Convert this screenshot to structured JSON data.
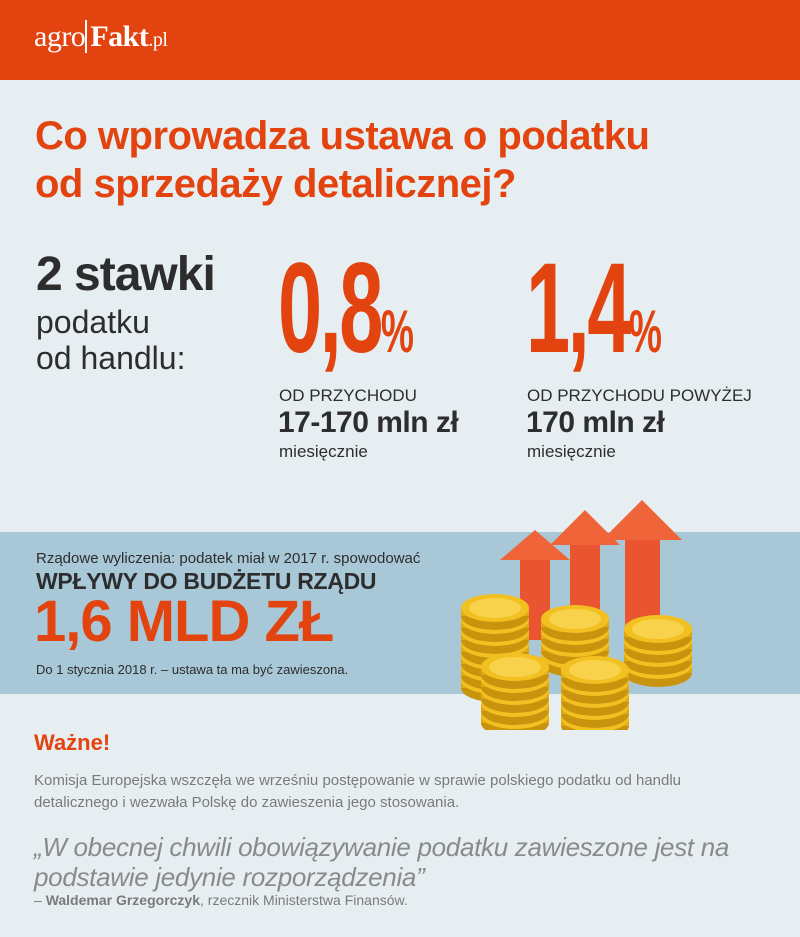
{
  "header": {
    "logo_agro": "agro",
    "logo_fakt": "Fakt",
    "logo_pl": ".pl"
  },
  "title": {
    "line1": "Co wprowadza ustawa o podatku",
    "line2": "od sprzedaży detalicznej?"
  },
  "rates_intro": {
    "heading": "2 stawki",
    "line1": "podatku",
    "line2": "od handlu:"
  },
  "rates": [
    {
      "value": "0,8",
      "percent": "%",
      "label": "OD PRZYCHODU",
      "amount": "17-170 mln zł",
      "period": "miesięcznie"
    },
    {
      "value": "1,4",
      "percent": "%",
      "label": "OD PRZYCHODU POWYŻEJ",
      "amount": "170 mln zł",
      "period": "miesięcznie"
    }
  ],
  "budget": {
    "intro": "Rządowe wyliczenia: podatek miał w 2017 r. spowodować",
    "heading": "WPŁYWY DO BUDŻETU RZĄDU",
    "amount": "1,6 MLD ZŁ",
    "note": "Do 1 stycznia 2018 r. – ustawa ta ma być zawieszona."
  },
  "important": {
    "heading": "Ważne!",
    "text": "Komisja Europejska wszczęła we wrześniu postępowanie w sprawie polskiego podatku od handlu detalicznego i wezwała Polskę do zawieszenia jego stosowania."
  },
  "quote": {
    "text": "„W obecnej chwili obowiązywanie podatku zawieszone jest na podstawie jedynie rozporządzenia”",
    "dash": "– ",
    "author": "Waldemar Grzegorczyk",
    "role": ", rzecznik Ministerstwa Finansów."
  },
  "colors": {
    "accent": "#e3440f",
    "band": "#a8c8d8",
    "background": "#e6eef2",
    "coin": "#f2c021",
    "arrow": "#f0643a"
  },
  "icons": [
    "growth-arrows-icon",
    "coin-stack-icon"
  ]
}
